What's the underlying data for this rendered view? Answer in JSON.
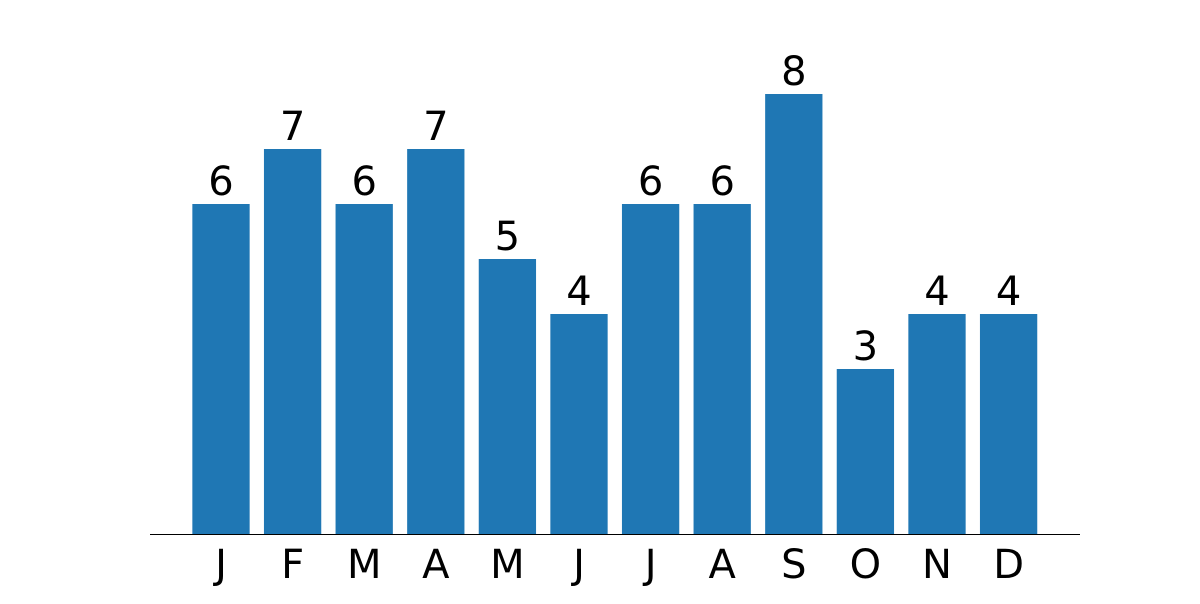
{
  "chart_data": {
    "type": "bar",
    "title": "",
    "xlabel": "",
    "ylabel": "",
    "categories": [
      "J",
      "F",
      "M",
      "A",
      "M",
      "J",
      "J",
      "A",
      "S",
      "O",
      "N",
      "D"
    ],
    "values": [
      6,
      7,
      6,
      7,
      5,
      4,
      6,
      6,
      8,
      3,
      4,
      4
    ],
    "ylim": [
      0,
      8
    ],
    "grid": false,
    "legend": "none",
    "bar_color": "#1f77b4",
    "show_bar_labels": true,
    "show_y_axis": false
  }
}
